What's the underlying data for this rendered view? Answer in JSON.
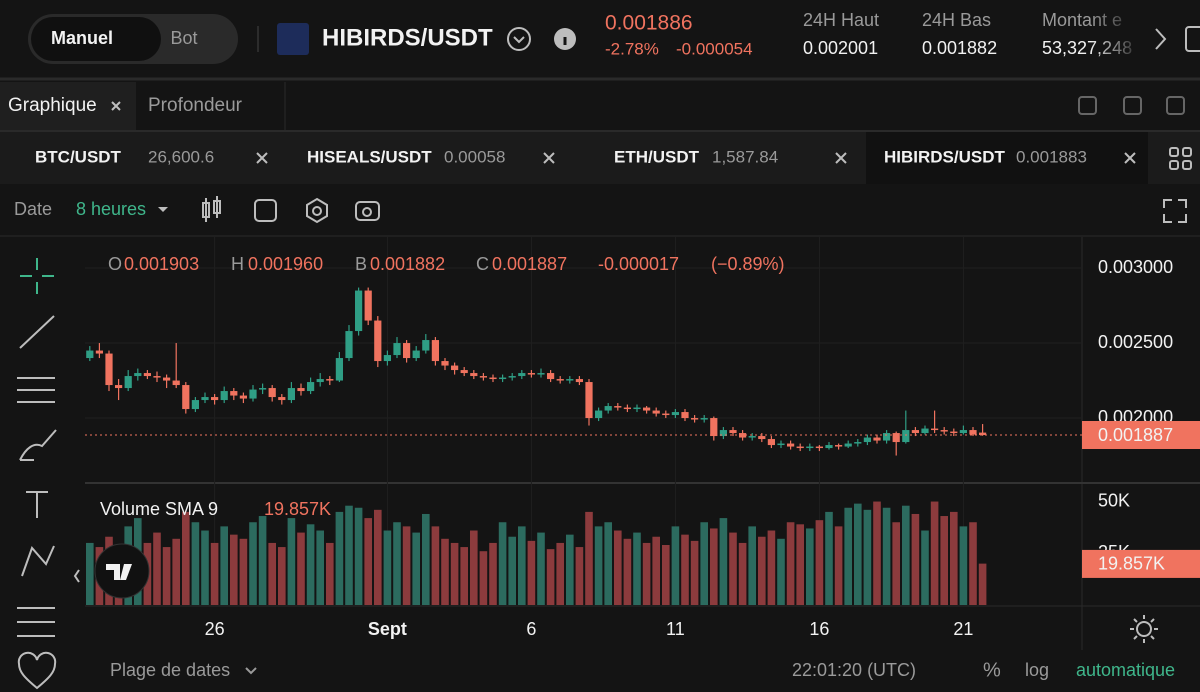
{
  "header": {
    "mode_buttons": [
      "Manuel",
      "Bot"
    ],
    "pair": "HIBIRDS/USDT",
    "price": "0.001886",
    "change_pct": "-2.78%",
    "change": "-0.000054",
    "stats": [
      {
        "label": "24H Haut",
        "value": "0.002001"
      },
      {
        "label": "24H Bas",
        "value": "0.001882"
      },
      {
        "label": "Montant e",
        "value": "53,327,248"
      }
    ]
  },
  "view_tabs": [
    "Graphique",
    "Profondeur"
  ],
  "pair_tabs": [
    {
      "pair": "BTC/USDT",
      "price": "26,600.6"
    },
    {
      "pair": "HISEALS/USDT",
      "price": "0.00058"
    },
    {
      "pair": "ETH/USDT",
      "price": "1,587.84"
    },
    {
      "pair": "HIBIRDS/USDT",
      "price": "0.001883"
    }
  ],
  "toolbar": {
    "date": "Date",
    "interval": "8 heures"
  },
  "chart_data": {
    "type": "candlestick",
    "ohlc": [
      {
        "key": "O",
        "value": "0.001903"
      },
      {
        "key": "H",
        "value": "0.001960"
      },
      {
        "key": "B",
        "value": "0.001882"
      },
      {
        "key": "C",
        "value": "0.001887"
      }
    ],
    "change": "-0.000017",
    "change_pct": "(−0.89%)",
    "up_color": "#2f9e85",
    "down_color": "#f0735f",
    "volume_up_color": "#2c6b5f",
    "volume_down_color": "#8c3b3d",
    "candles": [
      [
        0.0024,
        0.00248,
        0.00238,
        0.00245
      ],
      [
        0.00245,
        0.0025,
        0.0024,
        0.00243
      ],
      [
        0.00243,
        0.00245,
        0.00218,
        0.00222
      ],
      [
        0.00222,
        0.00226,
        0.00212,
        0.0022
      ],
      [
        0.0022,
        0.00232,
        0.00218,
        0.00228
      ],
      [
        0.00228,
        0.00233,
        0.00225,
        0.0023
      ],
      [
        0.0023,
        0.00232,
        0.00226,
        0.00228
      ],
      [
        0.00228,
        0.00231,
        0.00224,
        0.00227
      ],
      [
        0.00227,
        0.00229,
        0.0022,
        0.00225
      ],
      [
        0.00225,
        0.0025,
        0.0022,
        0.00222
      ],
      [
        0.00222,
        0.00224,
        0.00203,
        0.00206
      ],
      [
        0.00206,
        0.00214,
        0.00204,
        0.00212
      ],
      [
        0.00212,
        0.00217,
        0.0021,
        0.00214
      ],
      [
        0.00214,
        0.00216,
        0.00209,
        0.00212
      ],
      [
        0.00212,
        0.00221,
        0.0021,
        0.00218
      ],
      [
        0.00218,
        0.0022,
        0.00212,
        0.00215
      ],
      [
        0.00215,
        0.00217,
        0.0021,
        0.00213
      ],
      [
        0.00213,
        0.00222,
        0.00211,
        0.00219
      ],
      [
        0.00219,
        0.00223,
        0.00216,
        0.0022
      ],
      [
        0.0022,
        0.00222,
        0.00211,
        0.00214
      ],
      [
        0.00214,
        0.00216,
        0.00209,
        0.00212
      ],
      [
        0.00212,
        0.00224,
        0.0021,
        0.0022
      ],
      [
        0.0022,
        0.00223,
        0.00215,
        0.00218
      ],
      [
        0.00218,
        0.00227,
        0.00216,
        0.00224
      ],
      [
        0.00224,
        0.0023,
        0.00221,
        0.00226
      ],
      [
        0.00226,
        0.00228,
        0.00222,
        0.00225
      ],
      [
        0.00225,
        0.00244,
        0.00224,
        0.0024
      ],
      [
        0.0024,
        0.00262,
        0.00238,
        0.00258
      ],
      [
        0.00258,
        0.00287,
        0.00255,
        0.00285
      ],
      [
        0.00285,
        0.00287,
        0.00262,
        0.00265
      ],
      [
        0.00265,
        0.00268,
        0.00234,
        0.00238
      ],
      [
        0.00238,
        0.00245,
        0.00235,
        0.00242
      ],
      [
        0.00242,
        0.00254,
        0.0024,
        0.0025
      ],
      [
        0.0025,
        0.00252,
        0.00237,
        0.0024
      ],
      [
        0.0024,
        0.00248,
        0.00238,
        0.00245
      ],
      [
        0.00245,
        0.00256,
        0.00243,
        0.00252
      ],
      [
        0.00252,
        0.00254,
        0.00235,
        0.00238
      ],
      [
        0.00238,
        0.0024,
        0.00232,
        0.00235
      ],
      [
        0.00235,
        0.00237,
        0.00229,
        0.00232
      ],
      [
        0.00232,
        0.00234,
        0.00228,
        0.0023
      ],
      [
        0.0023,
        0.00232,
        0.00226,
        0.00228
      ],
      [
        0.00228,
        0.0023,
        0.00225,
        0.00227
      ],
      [
        0.00227,
        0.00229,
        0.00224,
        0.00226
      ],
      [
        0.00226,
        0.00229,
        0.00224,
        0.00227
      ],
      [
        0.00227,
        0.0023,
        0.00225,
        0.00228
      ],
      [
        0.00228,
        0.00232,
        0.00226,
        0.0023
      ],
      [
        0.0023,
        0.00232,
        0.00227,
        0.00229
      ],
      [
        0.00229,
        0.00233,
        0.00227,
        0.0023
      ],
      [
        0.0023,
        0.00232,
        0.00224,
        0.00226
      ],
      [
        0.00226,
        0.00228,
        0.00223,
        0.00225
      ],
      [
        0.00225,
        0.00228,
        0.00223,
        0.00226
      ],
      [
        0.00226,
        0.00228,
        0.00222,
        0.00224
      ],
      [
        0.00224,
        0.00226,
        0.00195,
        0.002
      ],
      [
        0.002,
        0.00207,
        0.00198,
        0.00205
      ],
      [
        0.00205,
        0.0021,
        0.00203,
        0.00208
      ],
      [
        0.00208,
        0.0021,
        0.00205,
        0.00207
      ],
      [
        0.00207,
        0.00209,
        0.00204,
        0.00206
      ],
      [
        0.00206,
        0.00209,
        0.00204,
        0.00207
      ],
      [
        0.00207,
        0.00208,
        0.00203,
        0.00205
      ],
      [
        0.00205,
        0.00207,
        0.00201,
        0.00203
      ],
      [
        0.00203,
        0.00205,
        0.002,
        0.00202
      ],
      [
        0.00202,
        0.00206,
        0.002,
        0.00204
      ],
      [
        0.00204,
        0.00206,
        0.00198,
        0.002
      ],
      [
        0.002,
        0.00202,
        0.00197,
        0.00199
      ],
      [
        0.00199,
        0.00202,
        0.00197,
        0.002
      ],
      [
        0.002,
        0.00201,
        0.00185,
        0.00188
      ],
      [
        0.00188,
        0.00194,
        0.00186,
        0.00192
      ],
      [
        0.00192,
        0.00194,
        0.00188,
        0.0019
      ],
      [
        0.0019,
        0.00192,
        0.00185,
        0.00187
      ],
      [
        0.00187,
        0.0019,
        0.00185,
        0.00188
      ],
      [
        0.00188,
        0.0019,
        0.00184,
        0.00186
      ],
      [
        0.00186,
        0.00188,
        0.0018,
        0.00182
      ],
      [
        0.00182,
        0.00185,
        0.0018,
        0.00183
      ],
      [
        0.00183,
        0.00185,
        0.00179,
        0.00181
      ],
      [
        0.00181,
        0.00183,
        0.00178,
        0.0018
      ],
      [
        0.0018,
        0.00183,
        0.00178,
        0.00181
      ],
      [
        0.00181,
        0.00182,
        0.00178,
        0.0018
      ],
      [
        0.0018,
        0.00184,
        0.00179,
        0.00182
      ],
      [
        0.00182,
        0.00183,
        0.00179,
        0.00181
      ],
      [
        0.00181,
        0.00185,
        0.0018,
        0.00183
      ],
      [
        0.00183,
        0.00186,
        0.00181,
        0.00184
      ],
      [
        0.00184,
        0.00189,
        0.00182,
        0.00187
      ],
      [
        0.00187,
        0.00189,
        0.00183,
        0.00185
      ],
      [
        0.00185,
        0.00192,
        0.00183,
        0.0019
      ],
      [
        0.0019,
        0.00191,
        0.00175,
        0.00184
      ],
      [
        0.00184,
        0.00205,
        0.00183,
        0.00192
      ],
      [
        0.00192,
        0.00194,
        0.00188,
        0.0019
      ],
      [
        0.0019,
        0.00195,
        0.00189,
        0.00193
      ],
      [
        0.00193,
        0.00205,
        0.0019,
        0.00192
      ],
      [
        0.00192,
        0.00194,
        0.00189,
        0.00191
      ],
      [
        0.00191,
        0.00193,
        0.00188,
        0.0019
      ],
      [
        0.0019,
        0.00195,
        0.00189,
        0.00192
      ],
      [
        0.00192,
        0.00194,
        0.00188,
        0.00189
      ],
      [
        0.001903,
        0.00196,
        0.001882,
        0.001887
      ]
    ],
    "volume": [
      30000,
      28000,
      33000,
      25000,
      38000,
      42000,
      30000,
      35000,
      28000,
      32000,
      45000,
      40000,
      36000,
      30000,
      38000,
      34000,
      32000,
      40000,
      43000,
      30000,
      28000,
      42000,
      35000,
      39000,
      36000,
      30000,
      45000,
      48000,
      47000,
      42000,
      46000,
      36000,
      40000,
      38000,
      35000,
      44000,
      38000,
      32000,
      30000,
      28000,
      36000,
      26000,
      30000,
      40000,
      33000,
      38000,
      31000,
      35000,
      27000,
      30000,
      34000,
      28000,
      45000,
      38000,
      40000,
      36000,
      32000,
      35000,
      30000,
      33000,
      29000,
      38000,
      34000,
      31000,
      40000,
      37000,
      42000,
      35000,
      30000,
      38000,
      33000,
      36000,
      32000,
      40000,
      39000,
      37000,
      41000,
      45000,
      38000,
      47000,
      49000,
      46000,
      50000,
      47000,
      40000,
      48000,
      44000,
      36000,
      50000,
      43000,
      45000,
      38000,
      40000,
      20000
    ],
    "ylim": [
      0.001567,
      0.003207
    ],
    "yticks": [
      {
        "value": 0.003,
        "label": "0.003000"
      },
      {
        "value": 0.0025,
        "label": "0.002500"
      },
      {
        "value": 0.002,
        "label": "0.002000"
      }
    ],
    "last_price": 0.001887,
    "volume_title": "Volume SMA 9",
    "volume_sma": 19857,
    "volume_sma_label": "19.857K",
    "volume_ylim": [
      0,
      58000
    ],
    "volume_yticks": [
      {
        "value": 50000,
        "label": "50K"
      },
      {
        "value": 25000,
        "label": "25K"
      }
    ],
    "xticks": [
      {
        "value": 13,
        "label": "26"
      },
      {
        "value": 31,
        "label": "Sept"
      },
      {
        "value": 46,
        "label": "6"
      },
      {
        "value": 61,
        "label": "11"
      },
      {
        "value": 76,
        "label": "16"
      },
      {
        "value": 91,
        "label": "21"
      }
    ],
    "grid": true
  },
  "footer": {
    "range": "Plage de dates",
    "time": "22:01:20 (UTC)",
    "percent": "%",
    "log": "log",
    "auto": "automatique"
  }
}
